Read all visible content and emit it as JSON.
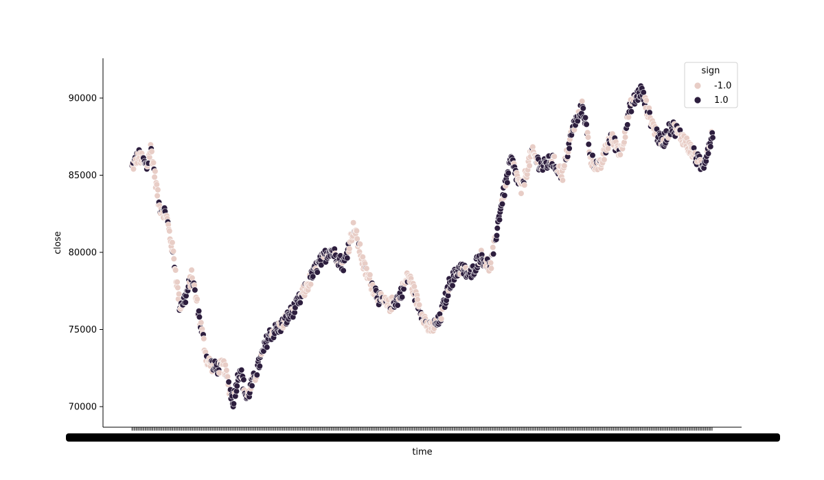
{
  "chart_data": {
    "type": "scatter",
    "title": "",
    "xlabel": "time",
    "ylabel": "close",
    "ylim": [
      68700,
      92600
    ],
    "yticks": [
      "70000",
      "75000",
      "80000",
      "85000",
      "90000"
    ],
    "x_tick_labels_note": "overlapping unreadable time tick labels",
    "legend": {
      "title": "sign",
      "placement": "top-right",
      "entries": [
        {
          "label": "-1.0",
          "color": "#e8cdc6"
        },
        {
          "label": "1.0",
          "color": "#2d1e3e"
        }
      ]
    },
    "grid": false,
    "n_points": 1050,
    "anchors": [
      [
        0,
        85500,
        1
      ],
      [
        10,
        86300,
        -1
      ],
      [
        22,
        85500,
        1
      ],
      [
        28,
        86800,
        -1
      ],
      [
        40,
        83000,
        -1
      ],
      [
        50,
        82500,
        -1
      ],
      [
        62,
        79500,
        -1
      ],
      [
        70,
        76500,
        -1
      ],
      [
        78,
        77000,
        1
      ],
      [
        88,
        78500,
        -1
      ],
      [
        98,
        76000,
        -1
      ],
      [
        110,
        73000,
        -1
      ],
      [
        122,
        72500,
        1
      ],
      [
        135,
        72600,
        -1
      ],
      [
        148,
        70300,
        1
      ],
      [
        158,
        72500,
        1
      ],
      [
        168,
        70500,
        1
      ],
      [
        182,
        72200,
        1
      ],
      [
        200,
        74600,
        1
      ],
      [
        220,
        75300,
        1
      ],
      [
        240,
        76500,
        1
      ],
      [
        255,
        77700,
        -1
      ],
      [
        270,
        79000,
        1
      ],
      [
        290,
        80200,
        1
      ],
      [
        310,
        79200,
        1
      ],
      [
        325,
        81700,
        -1
      ],
      [
        340,
        79000,
        -1
      ],
      [
        350,
        78000,
        -1
      ],
      [
        362,
        77000,
        1
      ],
      [
        375,
        76500,
        -1
      ],
      [
        390,
        77000,
        1
      ],
      [
        405,
        78500,
        -1
      ],
      [
        420,
        76500,
        -1
      ],
      [
        435,
        75000,
        -1
      ],
      [
        450,
        75500,
        1
      ],
      [
        465,
        78000,
        1
      ],
      [
        480,
        79000,
        1
      ],
      [
        495,
        78500,
        1
      ],
      [
        510,
        79800,
        1
      ],
      [
        525,
        79000,
        -1
      ],
      [
        540,
        83000,
        1
      ],
      [
        555,
        86000,
        1
      ],
      [
        570,
        84000,
        -1
      ],
      [
        585,
        86500,
        -1
      ],
      [
        600,
        85500,
        1
      ],
      [
        615,
        86000,
        1
      ],
      [
        630,
        85000,
        -1
      ],
      [
        645,
        88000,
        1
      ],
      [
        660,
        89500,
        1
      ],
      [
        672,
        86000,
        -1
      ],
      [
        685,
        85500,
        -1
      ],
      [
        700,
        87500,
        -1
      ],
      [
        715,
        86500,
        -1
      ],
      [
        730,
        89500,
        1
      ],
      [
        745,
        90500,
        1
      ],
      [
        760,
        88500,
        -1
      ],
      [
        775,
        87000,
        1
      ],
      [
        790,
        88200,
        1
      ],
      [
        805,
        87500,
        -1
      ],
      [
        820,
        86500,
        -1
      ],
      [
        835,
        85500,
        1
      ],
      [
        850,
        87800,
        1
      ]
    ]
  }
}
